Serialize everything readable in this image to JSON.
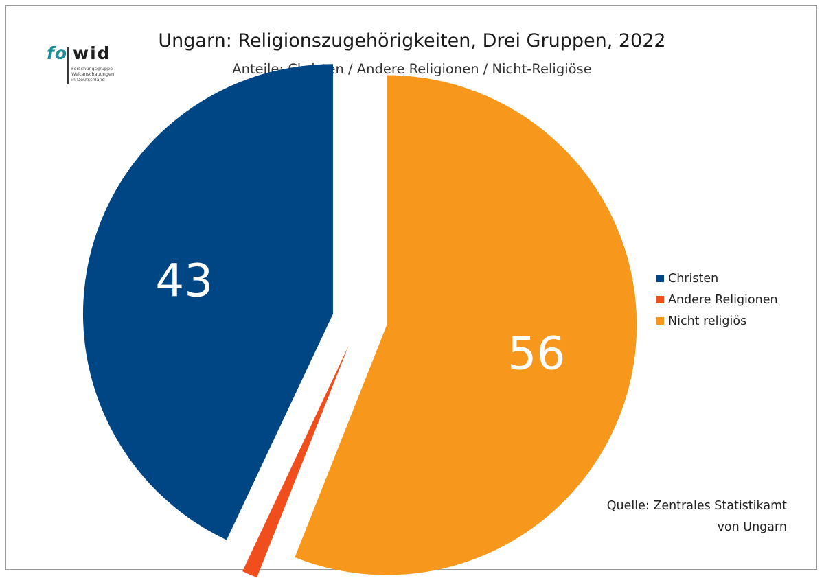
{
  "logo": {
    "part1": "fo",
    "part2": "wid",
    "tagline": [
      "Forschungsgruppe",
      "Weltanschauungen",
      "in Deutschland"
    ]
  },
  "header": {
    "title": "Ungarn: Religionszugehörigkeiten, Drei Gruppen, 2022",
    "subtitle": "Anteile: Christen / Andere Religionen / Nicht-Religiöse"
  },
  "chart_data": {
    "type": "pie",
    "title": "Ungarn: Religionszugehörigkeiten, Drei Gruppen, 2022",
    "subtitle": "Anteile: Christen / Andere Religionen / Nicht-Religiöse",
    "categories": [
      "Christen",
      "Andere Religionen",
      "Nicht religiös"
    ],
    "values": [
      43,
      1,
      56
    ],
    "data_labels": [
      "43",
      "",
      "56"
    ],
    "colors": [
      "#004584",
      "#f04e1c",
      "#f7981d"
    ],
    "start": "top",
    "direction": "counterclockwise",
    "exploded": true,
    "legend_position": "right"
  },
  "source": {
    "line1": "Quelle: Zentrales Statistikamt",
    "line2": "von Ungarn"
  }
}
